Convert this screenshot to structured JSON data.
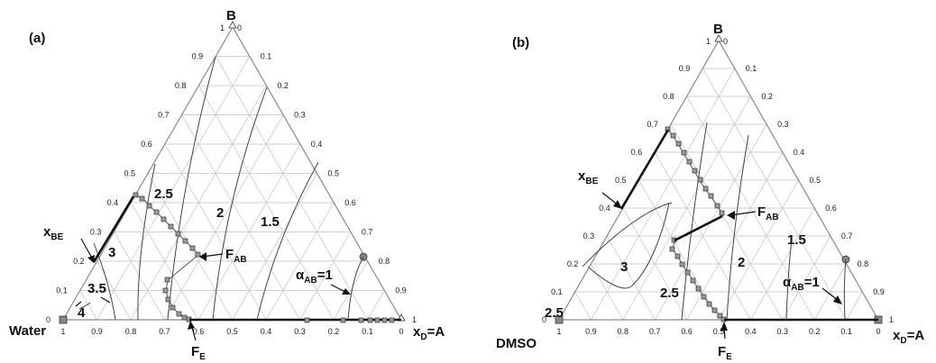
{
  "panels": [
    {
      "label": "(a)",
      "vertex_top": "B",
      "vertex_left": "Water",
      "vertex_right_main": "x",
      "vertex_right_sub": "D",
      "vertex_right_rest": "=A",
      "top_corner_1": "1",
      "top_corner_0": "0",
      "left_ticks": [
        "0.9",
        "0.8",
        "0.7",
        "0.6",
        "0.5",
        "0.4",
        "0.3",
        "0.2",
        "0.1",
        "0"
      ],
      "right_ticks": [
        "0.1",
        "0.2",
        "0.3",
        "0.4",
        "0.5",
        "0.6",
        "0.7",
        "0.8",
        "0.9",
        "1"
      ],
      "bottom_ticks": [
        "1",
        "0.9",
        "0.8",
        "0.7",
        "0.6",
        "0.5",
        "0.4",
        "0.3",
        "0.2",
        "0.1",
        "0"
      ],
      "iso_labels": [
        "4",
        "3.5",
        "3",
        "2.5",
        "2",
        "1.5"
      ],
      "alpha_main": "α",
      "alpha_sub": "AB",
      "alpha_rest": "=1",
      "xbe_main": "x",
      "xbe_sub": "BE",
      "fab_main": "F",
      "fab_sub": "AB",
      "fe_main": "F",
      "fe_sub": "E"
    },
    {
      "label": "(b)",
      "vertex_top": "B",
      "vertex_left": "DMSO",
      "vertex_right_main": "x",
      "vertex_right_sub": "D",
      "vertex_right_rest": "=A",
      "top_corner_1": "1",
      "top_corner_0": "0",
      "left_ticks": [
        "0.9",
        "0.8",
        "0.7",
        "0.6",
        "0.5",
        "0.4",
        "0.3",
        "0.2",
        "0.1",
        "0"
      ],
      "right_ticks": [
        "0.1",
        "0.2",
        "0.3",
        "0.4",
        "0.5",
        "0.6",
        "0.7",
        "0.8",
        "0.9",
        "1"
      ],
      "bottom_ticks": [
        "1",
        "0.9",
        "0.8",
        "0.7",
        "0.6",
        "0.5",
        "0.4",
        "0.3",
        "0.2",
        "0.1",
        "0"
      ],
      "iso_labels": [
        "2.5",
        "3",
        "2.5",
        "2",
        "1.5"
      ],
      "alpha_main": "α",
      "alpha_sub": "AB",
      "alpha_rest": "=1",
      "xbe_main": "x",
      "xbe_sub": "BE",
      "fab_main": "F",
      "fab_sub": "AB",
      "fe_main": "F",
      "fe_sub": "E"
    }
  ]
}
